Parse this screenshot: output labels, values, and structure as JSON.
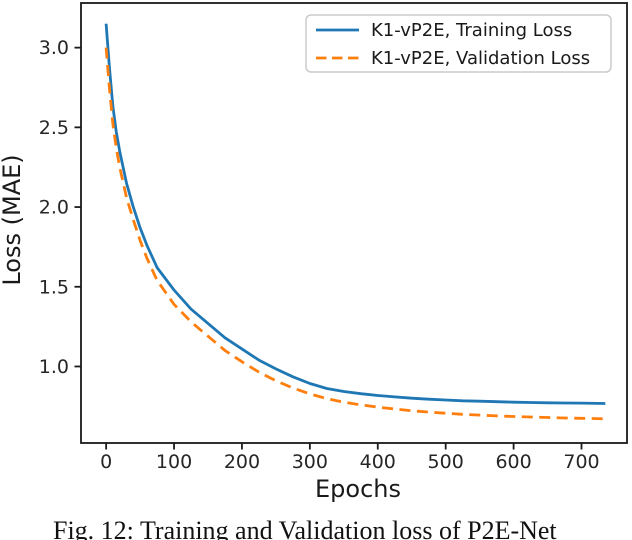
{
  "figure": {
    "caption": "Fig. 12: Training and Validation loss of P2E-Net"
  },
  "chart_data": {
    "type": "line",
    "title": "",
    "xlabel": "Epochs",
    "ylabel": "Loss (MAE)",
    "xlim": [
      -37,
      767
    ],
    "ylim": [
      0.52,
      3.28
    ],
    "x_ticks": [
      0,
      100,
      200,
      300,
      400,
      500,
      600,
      700
    ],
    "y_ticks": [
      3.0,
      2.5,
      2.0,
      1.5,
      1.0
    ],
    "y_tick_labels": [
      "3.0",
      "2.5",
      "2.0",
      "1.5",
      "1.0"
    ],
    "grid": false,
    "legend_position": "upper right",
    "legend_border_color": "#cccccc",
    "axis_color": "#1a1a1a",
    "series": [
      {
        "name": "K1-vP2E, Training Loss",
        "color": "#1f77b4",
        "style": "solid",
        "x": [
          0,
          5,
          10,
          15,
          20,
          30,
          40,
          50,
          60,
          75,
          100,
          125,
          150,
          175,
          200,
          225,
          250,
          275,
          300,
          325,
          350,
          375,
          400,
          425,
          450,
          475,
          500,
          525,
          550,
          575,
          600,
          625,
          650,
          675,
          700,
          735
        ],
        "y": [
          3.15,
          2.87,
          2.63,
          2.47,
          2.35,
          2.15,
          2.0,
          1.87,
          1.76,
          1.62,
          1.48,
          1.36,
          1.27,
          1.18,
          1.11,
          1.04,
          0.985,
          0.935,
          0.893,
          0.862,
          0.843,
          0.829,
          0.818,
          0.809,
          0.801,
          0.795,
          0.79,
          0.785,
          0.782,
          0.779,
          0.776,
          0.774,
          0.772,
          0.771,
          0.77,
          0.768
        ]
      },
      {
        "name": "K1-vP2E, Validation Loss",
        "color": "#ff7f0e",
        "style": "dashed",
        "x": [
          0,
          5,
          10,
          15,
          20,
          30,
          40,
          50,
          60,
          75,
          100,
          125,
          150,
          175,
          200,
          225,
          250,
          275,
          300,
          325,
          350,
          375,
          400,
          425,
          450,
          475,
          500,
          525,
          550,
          575,
          600,
          625,
          650,
          675,
          700,
          735
        ],
        "y": [
          3.0,
          2.74,
          2.52,
          2.37,
          2.25,
          2.06,
          1.92,
          1.79,
          1.68,
          1.54,
          1.39,
          1.28,
          1.19,
          1.1,
          1.03,
          0.965,
          0.91,
          0.865,
          0.828,
          0.798,
          0.776,
          0.759,
          0.745,
          0.733,
          0.722,
          0.714,
          0.707,
          0.7,
          0.695,
          0.69,
          0.686,
          0.683,
          0.68,
          0.677,
          0.675,
          0.672
        ]
      }
    ]
  }
}
